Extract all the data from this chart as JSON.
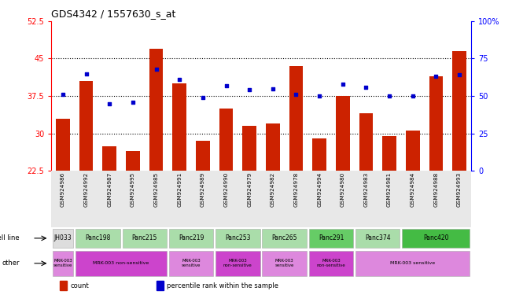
{
  "title": "GDS4342 / 1557630_s_at",
  "samples": [
    "GSM924986",
    "GSM924992",
    "GSM924987",
    "GSM924995",
    "GSM924985",
    "GSM924991",
    "GSM924989",
    "GSM924990",
    "GSM924979",
    "GSM924982",
    "GSM924978",
    "GSM924994",
    "GSM924980",
    "GSM924983",
    "GSM924981",
    "GSM924984",
    "GSM924988",
    "GSM924993"
  ],
  "counts": [
    33.0,
    40.5,
    27.5,
    26.5,
    47.0,
    40.0,
    28.5,
    35.0,
    31.5,
    32.0,
    43.5,
    29.0,
    37.5,
    34.0,
    29.5,
    30.5,
    41.5,
    46.5
  ],
  "percentiles": [
    51,
    65,
    45,
    46,
    68,
    61,
    49,
    57,
    54,
    55,
    51,
    50,
    58,
    56,
    50,
    50,
    63,
    64
  ],
  "ylim_left": [
    22.5,
    52.5
  ],
  "ylim_right": [
    0,
    100
  ],
  "yticks_left": [
    22.5,
    30,
    37.5,
    45,
    52.5
  ],
  "yticks_right": [
    0,
    25,
    50,
    75,
    100
  ],
  "ytick_labels_left": [
    "22.5",
    "30",
    "37.5",
    "45",
    "52.5"
  ],
  "ytick_labels_right": [
    "0",
    "25",
    "50",
    "75",
    "100%"
  ],
  "hlines": [
    30,
    37.5,
    45
  ],
  "bar_color": "#cc2200",
  "dot_color": "#0000cc",
  "cell_lines": [
    {
      "name": "JH033",
      "start": 0,
      "end": 1,
      "color": "#dddddd"
    },
    {
      "name": "Panc198",
      "start": 1,
      "end": 3,
      "color": "#aaddaa"
    },
    {
      "name": "Panc215",
      "start": 3,
      "end": 5,
      "color": "#aaddaa"
    },
    {
      "name": "Panc219",
      "start": 5,
      "end": 7,
      "color": "#aaddaa"
    },
    {
      "name": "Panc253",
      "start": 7,
      "end": 9,
      "color": "#aaddaa"
    },
    {
      "name": "Panc265",
      "start": 9,
      "end": 11,
      "color": "#aaddaa"
    },
    {
      "name": "Panc291",
      "start": 11,
      "end": 13,
      "color": "#66cc66"
    },
    {
      "name": "Panc374",
      "start": 13,
      "end": 15,
      "color": "#aaddaa"
    },
    {
      "name": "Panc420",
      "start": 15,
      "end": 18,
      "color": "#44bb44"
    }
  ],
  "other_groups": [
    {
      "label": "MRK-003\nsensitive",
      "start": 0,
      "end": 1,
      "color": "#dd88dd"
    },
    {
      "label": "MRK-003 non-sensitive",
      "start": 1,
      "end": 5,
      "color": "#cc44cc"
    },
    {
      "label": "MRK-003\nsensitive",
      "start": 5,
      "end": 7,
      "color": "#dd88dd"
    },
    {
      "label": "MRK-003\nnon-sensitive",
      "start": 7,
      "end": 9,
      "color": "#cc44cc"
    },
    {
      "label": "MRK-003\nsensitive",
      "start": 9,
      "end": 11,
      "color": "#dd88dd"
    },
    {
      "label": "MRK-003\nnon-sensitive",
      "start": 11,
      "end": 13,
      "color": "#cc44cc"
    },
    {
      "label": "MRK-003 sensitive",
      "start": 13,
      "end": 18,
      "color": "#dd88dd"
    }
  ],
  "bg_color": "#e8e8e8",
  "legend_items": [
    {
      "label": "count",
      "color": "#cc2200"
    },
    {
      "label": "percentile rank within the sample",
      "color": "#0000cc"
    }
  ]
}
